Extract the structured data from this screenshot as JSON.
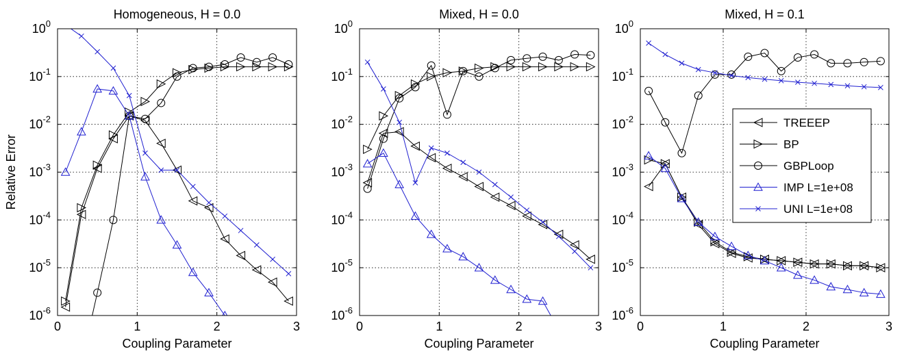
{
  "chart_data": [
    {
      "type": "line",
      "title": "Homogeneous, H = 0.0",
      "xlabel": "Coupling Parameter",
      "ylabel": "Relative Error",
      "xlim": [
        0,
        3
      ],
      "ylim": [
        1e-06,
        1
      ],
      "yscale": "log",
      "grid": true,
      "xticks": [
        "0",
        "1",
        "2",
        "3"
      ],
      "yticks": [
        {
          "base": "10",
          "exp": "-6",
          "value": 1e-06
        },
        {
          "base": "10",
          "exp": "-5",
          "value": 1e-05
        },
        {
          "base": "10",
          "exp": "-4",
          "value": 0.0001
        },
        {
          "base": "10",
          "exp": "-3",
          "value": 0.001
        },
        {
          "base": "10",
          "exp": "-2",
          "value": 0.01
        },
        {
          "base": "10",
          "exp": "-1",
          "value": 0.1
        },
        {
          "base": "10",
          "exp": "0",
          "value": 1
        }
      ],
      "series": [
        {
          "name": "TREEEP",
          "marker": "tri-left",
          "color": "#000000",
          "x": [
            0.1,
            0.3,
            0.5,
            0.7,
            0.9,
            1.1,
            1.3,
            1.5,
            1.7,
            1.9,
            2.1,
            2.3,
            2.5,
            2.7,
            2.9
          ],
          "y": [
            1.5e-06,
            0.00013,
            0.0012,
            0.005,
            0.015,
            0.012,
            0.004,
            0.0011,
            0.00025,
            0.00018,
            4e-05,
            1.8e-05,
            9e-06,
            5e-06,
            2e-06
          ]
        },
        {
          "name": "BP",
          "marker": "tri-right",
          "color": "#000000",
          "x": [
            0.1,
            0.3,
            0.5,
            0.7,
            0.9,
            1.1,
            1.3,
            1.5,
            1.7,
            1.9,
            2.1,
            2.3,
            2.5,
            2.7,
            2.9
          ],
          "y": [
            2e-06,
            0.00018,
            0.0014,
            0.006,
            0.018,
            0.03,
            0.07,
            0.12,
            0.14,
            0.15,
            0.16,
            0.16,
            0.16,
            0.16,
            0.16
          ]
        },
        {
          "name": "GBPLoop",
          "marker": "circle",
          "color": "#000000",
          "x": [
            0.3,
            0.5,
            0.7,
            0.9,
            1.1,
            1.3,
            1.5,
            1.7,
            1.9,
            2.1,
            2.3,
            2.5,
            2.7,
            2.9
          ],
          "y": [
            1e-07,
            3e-06,
            0.0001,
            0.015,
            0.013,
            0.028,
            0.1,
            0.15,
            0.16,
            0.18,
            0.25,
            0.2,
            0.25,
            0.18
          ]
        },
        {
          "name": "IMP L=1e+08",
          "marker": "triangle-up",
          "color": "#1f1fd0",
          "x": [
            0.1,
            0.3,
            0.5,
            0.7,
            0.9,
            1.1,
            1.3,
            1.5,
            1.7,
            1.9,
            2.1,
            2.3
          ],
          "y": [
            0.001,
            0.007,
            0.055,
            0.05,
            0.015,
            0.0008,
            0.0001,
            3e-05,
            8e-06,
            3e-06,
            1e-06,
            3e-07
          ]
        },
        {
          "name": "UNI L=1e+08",
          "marker": "x",
          "color": "#1f1fd0",
          "x": [
            0.1,
            0.3,
            0.5,
            0.7,
            0.9,
            1.1,
            1.3,
            1.5,
            1.7,
            1.9,
            2.1,
            2.3,
            2.5,
            2.7,
            2.9
          ],
          "y": [
            1.2,
            0.7,
            0.33,
            0.15,
            0.04,
            0.0025,
            0.0011,
            0.0011,
            0.0005,
            0.00023,
            0.00012,
            6e-05,
            3e-05,
            1.5e-05,
            7.5e-06
          ]
        }
      ]
    },
    {
      "type": "line",
      "title": "Mixed, H = 0.0",
      "xlabel": "Coupling Parameter",
      "ylabel": "",
      "xlim": [
        0,
        3
      ],
      "ylim": [
        1e-06,
        1
      ],
      "yscale": "log",
      "grid": true,
      "xticks": [
        "0",
        "1",
        "2",
        "3"
      ],
      "yticks": [
        {
          "base": "10",
          "exp": "-6",
          "value": 1e-06
        },
        {
          "base": "10",
          "exp": "-5",
          "value": 1e-05
        },
        {
          "base": "10",
          "exp": "-4",
          "value": 0.0001
        },
        {
          "base": "10",
          "exp": "-3",
          "value": 0.001
        },
        {
          "base": "10",
          "exp": "-2",
          "value": 0.01
        },
        {
          "base": "10",
          "exp": "-1",
          "value": 0.1
        },
        {
          "base": "10",
          "exp": "0",
          "value": 1
        }
      ],
      "series": [
        {
          "name": "TREEEP",
          "marker": "tri-left",
          "color": "#000000",
          "x": [
            0.1,
            0.3,
            0.5,
            0.7,
            0.9,
            1.1,
            1.3,
            1.5,
            1.7,
            1.9,
            2.1,
            2.3,
            2.5,
            2.7,
            2.9
          ],
          "y": [
            0.0006,
            0.0065,
            0.007,
            0.0035,
            0.002,
            0.0012,
            0.0008,
            0.0005,
            0.0003,
            0.0002,
            0.00012,
            8e-05,
            5e-05,
            3e-05,
            1.5e-05
          ]
        },
        {
          "name": "BP",
          "marker": "tri-right",
          "color": "#000000",
          "x": [
            0.1,
            0.3,
            0.5,
            0.7,
            0.9,
            1.1,
            1.3,
            1.5,
            1.7,
            1.9,
            2.1,
            2.3,
            2.5,
            2.7,
            2.9
          ],
          "y": [
            0.003,
            0.015,
            0.04,
            0.07,
            0.1,
            0.12,
            0.13,
            0.15,
            0.16,
            0.16,
            0.16,
            0.16,
            0.16,
            0.16,
            0.16
          ]
        },
        {
          "name": "GBPLoop",
          "marker": "circle",
          "color": "#000000",
          "x": [
            0.1,
            0.3,
            0.5,
            0.7,
            0.9,
            1.1,
            1.3,
            1.5,
            1.7,
            1.9,
            2.1,
            2.3,
            2.5,
            2.7,
            2.9
          ],
          "y": [
            0.00045,
            0.005,
            0.035,
            0.06,
            0.17,
            0.016,
            0.13,
            0.1,
            0.15,
            0.22,
            0.24,
            0.26,
            0.22,
            0.29,
            0.28
          ]
        },
        {
          "name": "IMP L=1e+08",
          "marker": "triangle-up",
          "color": "#1f1fd0",
          "x": [
            0.1,
            0.3,
            0.5,
            0.7,
            0.9,
            1.1,
            1.3,
            1.5,
            1.7,
            1.9,
            2.1,
            2.3,
            2.5
          ],
          "y": [
            0.0015,
            0.0025,
            0.00055,
            0.00012,
            5e-05,
            2.5e-05,
            1.7e-05,
            1e-05,
            5.5e-06,
            3.5e-06,
            2.2e-06,
            2e-06,
            5e-07
          ]
        },
        {
          "name": "UNI L=1e+08",
          "marker": "x",
          "color": "#1f1fd0",
          "x": [
            0.1,
            0.3,
            0.5,
            0.7,
            0.9,
            1.1,
            1.3,
            1.5,
            1.7,
            1.9,
            2.1,
            2.3,
            2.5,
            2.7,
            2.9
          ],
          "y": [
            0.2,
            0.055,
            0.011,
            0.0006,
            0.0032,
            0.0025,
            0.0016,
            0.001,
            0.00055,
            0.0003,
            0.00016,
            9e-05,
            4.5e-05,
            2.2e-05,
            1e-05
          ]
        }
      ]
    },
    {
      "type": "line",
      "title": "Mixed, H = 0.1",
      "xlabel": "Coupling Parameter",
      "ylabel": "",
      "xlim": [
        0,
        3
      ],
      "ylim": [
        1e-06,
        1
      ],
      "yscale": "log",
      "grid": true,
      "legend": "center-right",
      "xticks": [
        "0",
        "1",
        "2",
        "3"
      ],
      "yticks": [
        {
          "base": "10",
          "exp": "-6",
          "value": 1e-06
        },
        {
          "base": "10",
          "exp": "-5",
          "value": 1e-05
        },
        {
          "base": "10",
          "exp": "-4",
          "value": 0.0001
        },
        {
          "base": "10",
          "exp": "-3",
          "value": 0.001
        },
        {
          "base": "10",
          "exp": "-2",
          "value": 0.01
        },
        {
          "base": "10",
          "exp": "-1",
          "value": 0.1
        },
        {
          "base": "10",
          "exp": "0",
          "value": 1
        }
      ],
      "series": [
        {
          "name": "TREEEP",
          "marker": "tri-left",
          "color": "#000000",
          "x": [
            0.1,
            0.3,
            0.5,
            0.7,
            0.9,
            1.1,
            1.3,
            1.5,
            1.7,
            1.9,
            2.1,
            2.3,
            2.5,
            2.7,
            2.9
          ],
          "y": [
            0.0005,
            0.0015,
            0.0003,
            8e-05,
            3.2e-05,
            2e-05,
            1.6e-05,
            1.5e-05,
            1.4e-05,
            1.3e-05,
            1.2e-05,
            1.2e-05,
            1.1e-05,
            1.1e-05,
            1e-05
          ]
        },
        {
          "name": "BP",
          "marker": "tri-right",
          "color": "#000000",
          "x": [
            0.1,
            0.3,
            0.5,
            0.7,
            0.9,
            1.1,
            1.3,
            1.5,
            1.7,
            1.9,
            2.1,
            2.3,
            2.5,
            2.7,
            2.9
          ],
          "y": [
            0.0018,
            0.0015,
            0.0003,
            9e-05,
            3.5e-05,
            2.1e-05,
            1.7e-05,
            1.5e-05,
            1.4e-05,
            1.3e-05,
            1.2e-05,
            1.2e-05,
            1.1e-05,
            1.1e-05,
            1e-05
          ]
        },
        {
          "name": "GBPLoop",
          "marker": "circle",
          "color": "#000000",
          "x": [
            0.1,
            0.3,
            0.5,
            0.7,
            0.9,
            1.1,
            1.3,
            1.5,
            1.7,
            1.9,
            2.1,
            2.3,
            2.5,
            2.7,
            2.9
          ],
          "y": [
            0.05,
            0.011,
            0.0025,
            0.04,
            0.11,
            0.11,
            0.26,
            0.31,
            0.13,
            0.25,
            0.29,
            0.19,
            0.19,
            0.2,
            0.21
          ]
        },
        {
          "name": "IMP L=1e+08",
          "marker": "triangle-up",
          "color": "#1f1fd0",
          "x": [
            0.1,
            0.3,
            0.5,
            0.7,
            0.9,
            1.1,
            1.3,
            1.5,
            1.7,
            1.9,
            2.1,
            2.3,
            2.5,
            2.7,
            2.9
          ],
          "y": [
            0.0022,
            0.0012,
            0.00028,
            9e-05,
            4.5e-05,
            2.8e-05,
            1.8e-05,
            1.4e-05,
            1e-05,
            7e-06,
            5.5e-06,
            4e-06,
            3.5e-06,
            3e-06,
            2.8e-06
          ]
        },
        {
          "name": "UNI L=1e+08",
          "marker": "x",
          "color": "#1f1fd0",
          "x": [
            0.1,
            0.3,
            0.5,
            0.7,
            0.9,
            1.1,
            1.3,
            1.5,
            1.7,
            1.9,
            2.1,
            2.3,
            2.5,
            2.7,
            2.9
          ],
          "y": [
            0.5,
            0.29,
            0.19,
            0.14,
            0.12,
            0.105,
            0.095,
            0.088,
            0.082,
            0.076,
            0.072,
            0.068,
            0.064,
            0.061,
            0.059
          ]
        }
      ]
    }
  ]
}
